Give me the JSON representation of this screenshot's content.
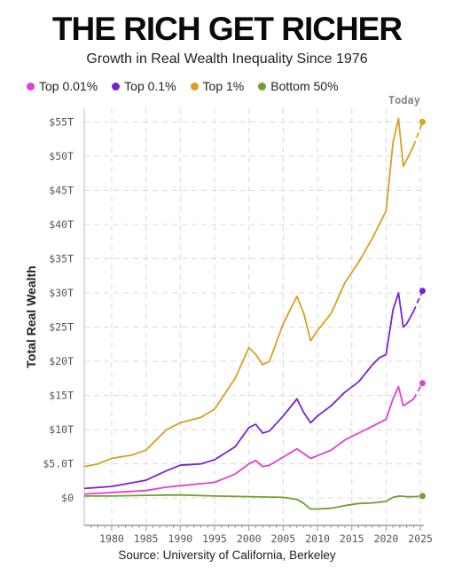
{
  "header": {
    "title": "THE RICH GET RICHER",
    "subtitle": "Growth in Real Wealth Inequality Since 1976"
  },
  "footer": {
    "source": "Source: University of California, Berkeley"
  },
  "chart_data": {
    "type": "line",
    "title": "THE RICH GET RICHER",
    "subtitle": "Growth in Real Wealth Inequality Since 1976",
    "ylabel": "Total Real Wealth",
    "xlabel": "",
    "xlim": [
      1976,
      2025.5
    ],
    "ylim": [
      -4,
      57
    ],
    "x_ticks": [
      1980,
      1985,
      1990,
      1995,
      2000,
      2005,
      2010,
      2015,
      2020,
      2025
    ],
    "y_ticks": [
      {
        "value": 0,
        "label": "$0"
      },
      {
        "value": 5,
        "label": "$5.0T"
      },
      {
        "value": 10,
        "label": "$10T"
      },
      {
        "value": 15,
        "label": "$15T"
      },
      {
        "value": 20,
        "label": "$20T"
      },
      {
        "value": 25,
        "label": "$25T"
      },
      {
        "value": 30,
        "label": "$30T"
      },
      {
        "value": 35,
        "label": "$35T"
      },
      {
        "value": 40,
        "label": "$40T"
      },
      {
        "value": 45,
        "label": "$45T"
      },
      {
        "value": 50,
        "label": "$50T"
      },
      {
        "value": 55,
        "label": "$55T"
      }
    ],
    "annotation": "Today",
    "grid": true,
    "legend_position": "top-left",
    "units": "trillions of dollars",
    "series": [
      {
        "name": "Top 0.01%",
        "color": "#e040d0",
        "points": [
          [
            1976,
            0.6
          ],
          [
            1980,
            0.8
          ],
          [
            1985,
            1.1
          ],
          [
            1988,
            1.6
          ],
          [
            1990,
            1.8
          ],
          [
            1995,
            2.3
          ],
          [
            1998,
            3.5
          ],
          [
            2000,
            5.0
          ],
          [
            2001,
            5.5
          ],
          [
            2002,
            4.6
          ],
          [
            2003,
            4.8
          ],
          [
            2005,
            6.0
          ],
          [
            2007,
            7.2
          ],
          [
            2008,
            6.5
          ],
          [
            2009,
            5.8
          ],
          [
            2010,
            6.2
          ],
          [
            2012,
            7.0
          ],
          [
            2014,
            8.5
          ],
          [
            2016,
            9.5
          ],
          [
            2018,
            10.5
          ],
          [
            2019,
            11.0
          ],
          [
            2020,
            11.5
          ],
          [
            2021,
            14.5
          ],
          [
            2021.8,
            16.3
          ],
          [
            2022.5,
            13.5
          ],
          [
            2023,
            13.8
          ],
          [
            2024,
            14.5
          ]
        ],
        "projection": [
          [
            2024,
            14.5
          ],
          [
            2025.3,
            16.8
          ]
        ]
      },
      {
        "name": "Top 0.1%",
        "color": "#7a22d0",
        "points": [
          [
            1976,
            1.4
          ],
          [
            1980,
            1.7
          ],
          [
            1985,
            2.6
          ],
          [
            1988,
            4.0
          ],
          [
            1990,
            4.8
          ],
          [
            1993,
            5.0
          ],
          [
            1995,
            5.6
          ],
          [
            1998,
            7.5
          ],
          [
            2000,
            10.3
          ],
          [
            2001,
            10.8
          ],
          [
            2002,
            9.5
          ],
          [
            2003,
            9.8
          ],
          [
            2005,
            12.0
          ],
          [
            2007,
            14.5
          ],
          [
            2008,
            12.5
          ],
          [
            2009,
            11.0
          ],
          [
            2010,
            12.0
          ],
          [
            2012,
            13.5
          ],
          [
            2014,
            15.5
          ],
          [
            2016,
            17.0
          ],
          [
            2018,
            19.5
          ],
          [
            2019,
            20.5
          ],
          [
            2020,
            21.0
          ],
          [
            2021,
            27.5
          ],
          [
            2021.8,
            30.0
          ],
          [
            2022.5,
            25.0
          ],
          [
            2023,
            25.5
          ],
          [
            2024,
            27.3
          ]
        ],
        "projection": [
          [
            2024,
            27.3
          ],
          [
            2025.3,
            30.3
          ]
        ]
      },
      {
        "name": "Top 1%",
        "color": "#d9a020",
        "points": [
          [
            1976,
            4.6
          ],
          [
            1978,
            5.0
          ],
          [
            1980,
            5.8
          ],
          [
            1983,
            6.3
          ],
          [
            1985,
            7.0
          ],
          [
            1988,
            10.0
          ],
          [
            1990,
            11.0
          ],
          [
            1993,
            11.8
          ],
          [
            1995,
            13.0
          ],
          [
            1998,
            17.5
          ],
          [
            2000,
            22.0
          ],
          [
            2001,
            21.0
          ],
          [
            2002,
            19.5
          ],
          [
            2003,
            20.0
          ],
          [
            2005,
            25.5
          ],
          [
            2007,
            29.5
          ],
          [
            2008,
            27.0
          ],
          [
            2009,
            23.0
          ],
          [
            2010,
            24.5
          ],
          [
            2012,
            27.0
          ],
          [
            2014,
            31.5
          ],
          [
            2016,
            34.5
          ],
          [
            2018,
            38.0
          ],
          [
            2019,
            40.0
          ],
          [
            2020,
            42.0
          ],
          [
            2021,
            52.0
          ],
          [
            2021.8,
            55.5
          ],
          [
            2022.5,
            48.5
          ],
          [
            2023,
            49.5
          ],
          [
            2024,
            51.5
          ]
        ],
        "projection": [
          [
            2024,
            51.5
          ],
          [
            2025.3,
            55.0
          ]
        ]
      },
      {
        "name": "Bottom 50%",
        "color": "#6fa030",
        "points": [
          [
            1976,
            0.3
          ],
          [
            1980,
            0.3
          ],
          [
            1985,
            0.4
          ],
          [
            1990,
            0.45
          ],
          [
            1995,
            0.3
          ],
          [
            2000,
            0.2
          ],
          [
            2005,
            0.1
          ],
          [
            2007,
            -0.2
          ],
          [
            2008,
            -0.8
          ],
          [
            2009,
            -1.6
          ],
          [
            2010,
            -1.6
          ],
          [
            2012,
            -1.5
          ],
          [
            2014,
            -1.1
          ],
          [
            2016,
            -0.8
          ],
          [
            2018,
            -0.7
          ],
          [
            2019,
            -0.6
          ],
          [
            2020,
            -0.5
          ],
          [
            2021,
            0.1
          ],
          [
            2022,
            0.3
          ],
          [
            2023,
            0.2
          ],
          [
            2024,
            0.2
          ]
        ],
        "projection": [
          [
            2024,
            0.2
          ],
          [
            2025.3,
            0.3
          ]
        ]
      }
    ]
  }
}
